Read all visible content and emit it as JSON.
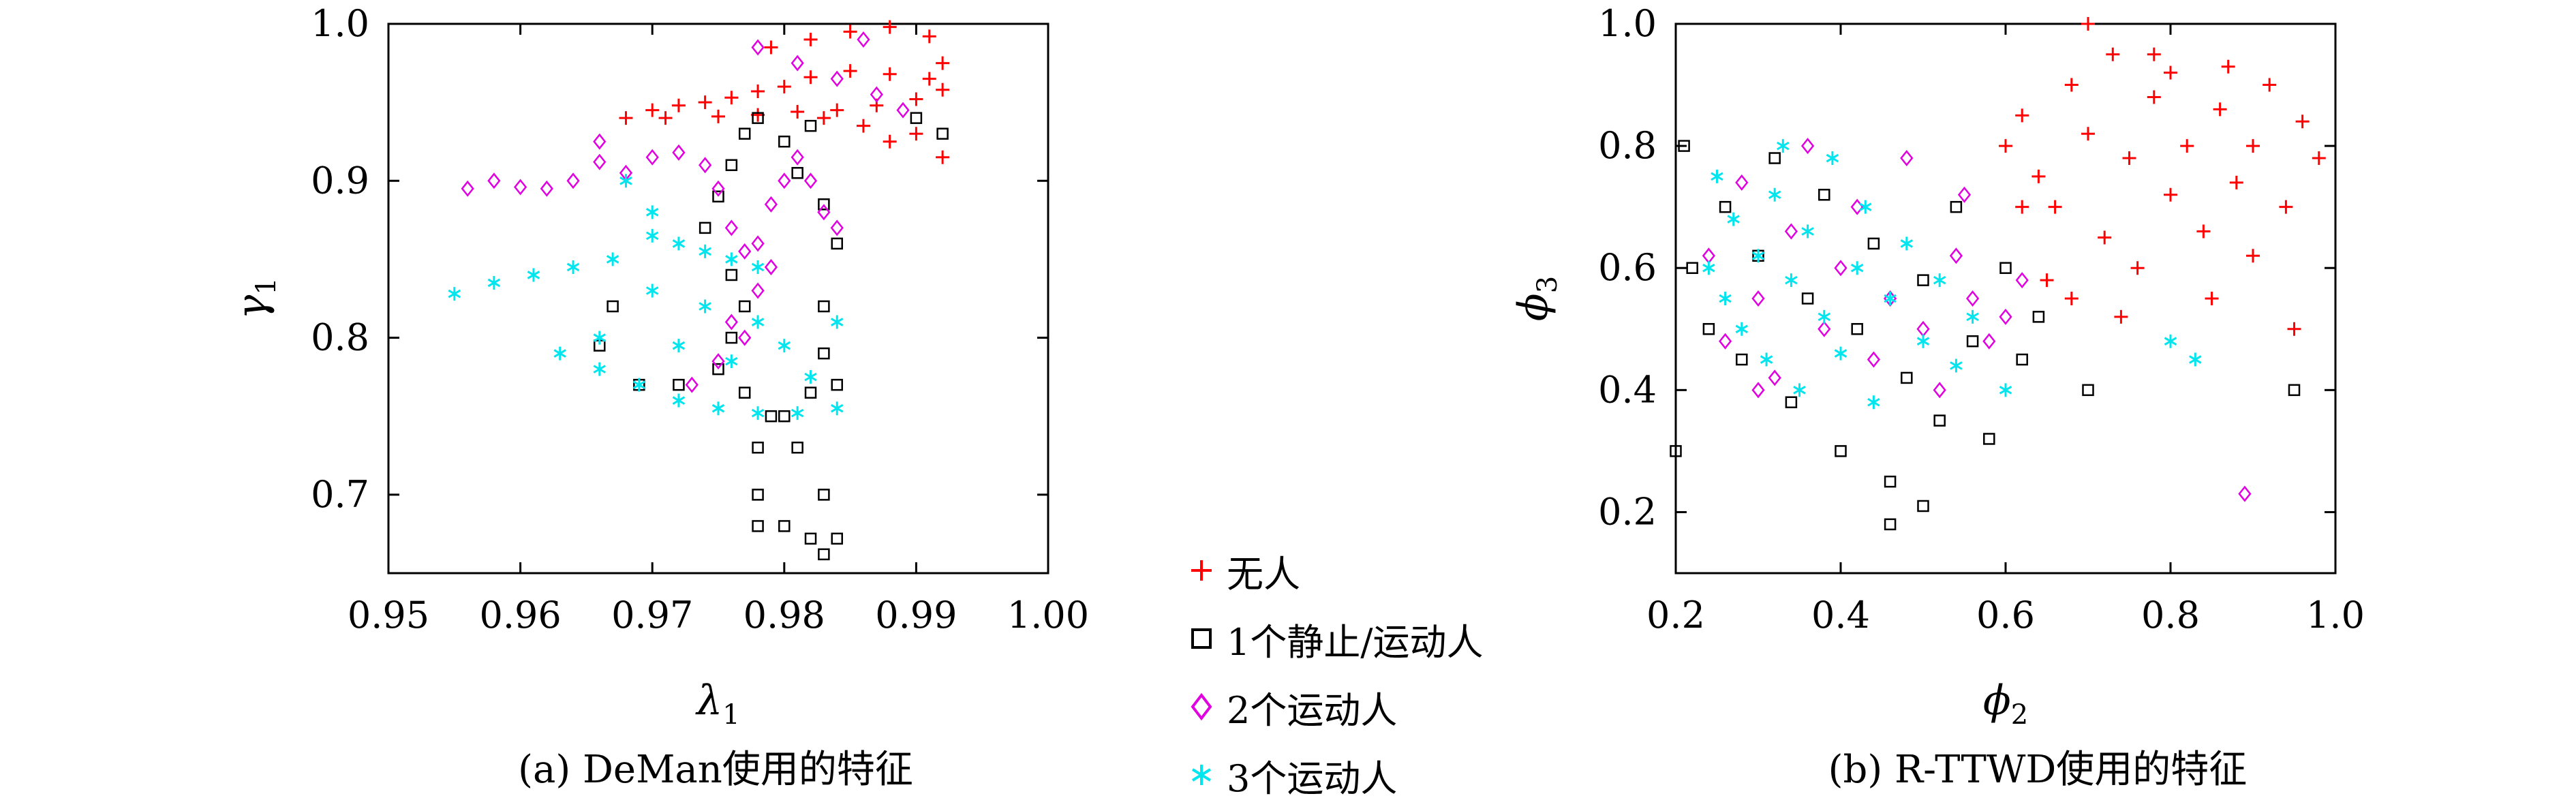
{
  "chart_data": [
    {
      "type": "scatter",
      "caption": "(a) DeMan使用的特征",
      "xlabel": "λ",
      "xlabel_sub": "1",
      "ylabel": "γ",
      "ylabel_sub": "1",
      "xlim": [
        0.95,
        1.0
      ],
      "ylim": [
        0.65,
        1.0
      ],
      "xticks": [
        "0.95",
        "0.96",
        "0.97",
        "0.98",
        "0.99",
        "1.00"
      ],
      "yticks": [
        "0.7",
        "0.8",
        "0.9",
        "1.0"
      ],
      "series": [
        {
          "name": "无人",
          "marker": "plus",
          "color": "#ff0000",
          "points": [
            [
              0.968,
              0.94
            ],
            [
              0.97,
              0.945
            ],
            [
              0.972,
              0.948
            ],
            [
              0.974,
              0.95
            ],
            [
              0.976,
              0.953
            ],
            [
              0.978,
              0.957
            ],
            [
              0.98,
              0.96
            ],
            [
              0.982,
              0.966
            ],
            [
              0.985,
              0.97
            ],
            [
              0.988,
              0.968
            ],
            [
              0.991,
              0.965
            ],
            [
              0.992,
              0.958
            ],
            [
              0.99,
              0.952
            ],
            [
              0.987,
              0.948
            ],
            [
              0.984,
              0.945
            ],
            [
              0.981,
              0.944
            ],
            [
              0.978,
              0.942
            ],
            [
              0.975,
              0.941
            ],
            [
              0.971,
              0.94
            ],
            [
              0.979,
              0.985
            ],
            [
              0.982,
              0.99
            ],
            [
              0.985,
              0.995
            ],
            [
              0.988,
              0.998
            ],
            [
              0.991,
              0.992
            ],
            [
              0.992,
              0.975
            ],
            [
              0.99,
              0.93
            ],
            [
              0.992,
              0.915
            ],
            [
              0.988,
              0.925
            ],
            [
              0.986,
              0.935
            ],
            [
              0.983,
              0.94
            ]
          ]
        },
        {
          "name": "1个静止/运动人",
          "marker": "square",
          "color": "#000000",
          "points": [
            [
              0.978,
              0.94
            ],
            [
              0.977,
              0.93
            ],
            [
              0.976,
              0.91
            ],
            [
              0.975,
              0.89
            ],
            [
              0.974,
              0.87
            ],
            [
              0.976,
              0.84
            ],
            [
              0.977,
              0.82
            ],
            [
              0.976,
              0.8
            ],
            [
              0.975,
              0.78
            ],
            [
              0.977,
              0.765
            ],
            [
              0.979,
              0.75
            ],
            [
              0.978,
              0.73
            ],
            [
              0.978,
              0.7
            ],
            [
              0.978,
              0.68
            ],
            [
              0.98,
              0.68
            ],
            [
              0.982,
              0.672
            ],
            [
              0.983,
              0.662
            ],
            [
              0.984,
              0.672
            ],
            [
              0.983,
              0.7
            ],
            [
              0.981,
              0.73
            ],
            [
              0.98,
              0.75
            ],
            [
              0.982,
              0.765
            ],
            [
              0.984,
              0.77
            ],
            [
              0.983,
              0.79
            ],
            [
              0.983,
              0.82
            ],
            [
              0.984,
              0.86
            ],
            [
              0.983,
              0.885
            ],
            [
              0.981,
              0.905
            ],
            [
              0.98,
              0.925
            ],
            [
              0.967,
              0.82
            ],
            [
              0.966,
              0.795
            ],
            [
              0.969,
              0.77
            ],
            [
              0.972,
              0.77
            ],
            [
              0.99,
              0.94
            ],
            [
              0.992,
              0.93
            ],
            [
              0.982,
              0.935
            ]
          ]
        },
        {
          "name": "2个运动人",
          "marker": "diamond",
          "color": "#e000e0",
          "points": [
            [
              0.956,
              0.895
            ],
            [
              0.958,
              0.9
            ],
            [
              0.96,
              0.896
            ],
            [
              0.962,
              0.895
            ],
            [
              0.964,
              0.9
            ],
            [
              0.966,
              0.912
            ],
            [
              0.966,
              0.925
            ],
            [
              0.968,
              0.905
            ],
            [
              0.97,
              0.915
            ],
            [
              0.972,
              0.918
            ],
            [
              0.974,
              0.91
            ],
            [
              0.975,
              0.895
            ],
            [
              0.976,
              0.87
            ],
            [
              0.977,
              0.855
            ],
            [
              0.978,
              0.86
            ],
            [
              0.979,
              0.885
            ],
            [
              0.98,
              0.9
            ],
            [
              0.981,
              0.915
            ],
            [
              0.982,
              0.9
            ],
            [
              0.983,
              0.88
            ],
            [
              0.984,
              0.87
            ],
            [
              0.978,
              0.83
            ],
            [
              0.977,
              0.8
            ],
            [
              0.975,
              0.785
            ],
            [
              0.973,
              0.77
            ],
            [
              0.976,
              0.81
            ],
            [
              0.979,
              0.845
            ],
            [
              0.978,
              0.985
            ],
            [
              0.981,
              0.975
            ],
            [
              0.984,
              0.965
            ],
            [
              0.987,
              0.955
            ],
            [
              0.989,
              0.945
            ],
            [
              0.986,
              0.99
            ]
          ]
        },
        {
          "name": "3个运动人",
          "marker": "asterisk",
          "color": "#00e5ee",
          "points": [
            [
              0.955,
              0.828
            ],
            [
              0.958,
              0.835
            ],
            [
              0.961,
              0.84
            ],
            [
              0.964,
              0.845
            ],
            [
              0.967,
              0.85
            ],
            [
              0.97,
              0.865
            ],
            [
              0.972,
              0.86
            ],
            [
              0.974,
              0.855
            ],
            [
              0.976,
              0.85
            ],
            [
              0.978,
              0.845
            ],
            [
              0.968,
              0.9
            ],
            [
              0.97,
              0.88
            ],
            [
              0.966,
              0.78
            ],
            [
              0.969,
              0.77
            ],
            [
              0.972,
              0.76
            ],
            [
              0.975,
              0.755
            ],
            [
              0.978,
              0.752
            ],
            [
              0.981,
              0.752
            ],
            [
              0.984,
              0.755
            ],
            [
              0.982,
              0.775
            ],
            [
              0.98,
              0.795
            ],
            [
              0.984,
              0.81
            ],
            [
              0.978,
              0.81
            ],
            [
              0.974,
              0.82
            ],
            [
              0.97,
              0.83
            ],
            [
              0.966,
              0.8
            ],
            [
              0.963,
              0.79
            ],
            [
              0.972,
              0.795
            ],
            [
              0.976,
              0.785
            ]
          ]
        }
      ]
    },
    {
      "type": "scatter",
      "caption": "(b) R-TTWD使用的特征",
      "xlabel": "ϕ",
      "xlabel_sub": "2",
      "ylabel": "ϕ",
      "ylabel_sub": "3",
      "xlim": [
        0.2,
        1.0
      ],
      "ylim": [
        0.1,
        1.0
      ],
      "xticks": [
        "0.2",
        "0.4",
        "0.6",
        "0.8",
        "1.0"
      ],
      "yticks": [
        "0.2",
        "0.4",
        "0.6",
        "0.8",
        "1.0"
      ],
      "series": [
        {
          "name": "无人",
          "marker": "plus",
          "color": "#ff0000",
          "points": [
            [
              0.6,
              0.8
            ],
            [
              0.62,
              0.85
            ],
            [
              0.64,
              0.75
            ],
            [
              0.66,
              0.7
            ],
            [
              0.68,
              0.9
            ],
            [
              0.7,
              0.82
            ],
            [
              0.72,
              0.65
            ],
            [
              0.73,
              0.95
            ],
            [
              0.75,
              0.78
            ],
            [
              0.76,
              0.6
            ],
            [
              0.78,
              0.88
            ],
            [
              0.8,
              0.72
            ],
            [
              0.82,
              0.8
            ],
            [
              0.84,
              0.66
            ],
            [
              0.86,
              0.86
            ],
            [
              0.88,
              0.74
            ],
            [
              0.9,
              0.8
            ],
            [
              0.92,
              0.9
            ],
            [
              0.94,
              0.7
            ],
            [
              0.96,
              0.84
            ],
            [
              0.98,
              0.78
            ],
            [
              0.7,
              1.0
            ],
            [
              0.65,
              0.58
            ],
            [
              0.68,
              0.55
            ],
            [
              0.74,
              0.52
            ],
            [
              0.85,
              0.55
            ],
            [
              0.95,
              0.5
            ],
            [
              0.9,
              0.62
            ],
            [
              0.78,
              0.95
            ],
            [
              0.62,
              0.7
            ],
            [
              0.8,
              0.92
            ],
            [
              0.87,
              0.93
            ]
          ]
        },
        {
          "name": "1个静止/运动人",
          "marker": "square",
          "color": "#000000",
          "points": [
            [
              0.21,
              0.8
            ],
            [
              0.22,
              0.6
            ],
            [
              0.24,
              0.5
            ],
            [
              0.26,
              0.7
            ],
            [
              0.28,
              0.45
            ],
            [
              0.3,
              0.62
            ],
            [
              0.32,
              0.78
            ],
            [
              0.34,
              0.38
            ],
            [
              0.36,
              0.55
            ],
            [
              0.38,
              0.72
            ],
            [
              0.4,
              0.3
            ],
            [
              0.42,
              0.5
            ],
            [
              0.44,
              0.64
            ],
            [
              0.46,
              0.25
            ],
            [
              0.48,
              0.42
            ],
            [
              0.5,
              0.58
            ],
            [
              0.52,
              0.35
            ],
            [
              0.54,
              0.7
            ],
            [
              0.56,
              0.48
            ],
            [
              0.58,
              0.32
            ],
            [
              0.6,
              0.6
            ],
            [
              0.62,
              0.45
            ],
            [
              0.64,
              0.52
            ],
            [
              0.2,
              0.3
            ],
            [
              0.46,
              0.18
            ],
            [
              0.5,
              0.21
            ],
            [
              0.95,
              0.4
            ],
            [
              0.7,
              0.4
            ]
          ]
        },
        {
          "name": "2个运动人",
          "marker": "diamond",
          "color": "#e000e0",
          "points": [
            [
              0.24,
              0.62
            ],
            [
              0.26,
              0.48
            ],
            [
              0.28,
              0.74
            ],
            [
              0.3,
              0.55
            ],
            [
              0.32,
              0.42
            ],
            [
              0.34,
              0.66
            ],
            [
              0.36,
              0.8
            ],
            [
              0.38,
              0.5
            ],
            [
              0.4,
              0.6
            ],
            [
              0.42,
              0.7
            ],
            [
              0.44,
              0.45
            ],
            [
              0.46,
              0.55
            ],
            [
              0.48,
              0.78
            ],
            [
              0.5,
              0.5
            ],
            [
              0.52,
              0.4
            ],
            [
              0.54,
              0.62
            ],
            [
              0.56,
              0.55
            ],
            [
              0.58,
              0.48
            ],
            [
              0.6,
              0.52
            ],
            [
              0.62,
              0.58
            ],
            [
              0.89,
              0.23
            ],
            [
              0.3,
              0.4
            ],
            [
              0.55,
              0.72
            ]
          ]
        },
        {
          "name": "3个运动人",
          "marker": "asterisk",
          "color": "#00e5ee",
          "points": [
            [
              0.24,
              0.6
            ],
            [
              0.26,
              0.55
            ],
            [
              0.27,
              0.68
            ],
            [
              0.28,
              0.5
            ],
            [
              0.3,
              0.62
            ],
            [
              0.31,
              0.45
            ],
            [
              0.32,
              0.72
            ],
            [
              0.34,
              0.58
            ],
            [
              0.35,
              0.4
            ],
            [
              0.36,
              0.66
            ],
            [
              0.38,
              0.52
            ],
            [
              0.39,
              0.78
            ],
            [
              0.4,
              0.46
            ],
            [
              0.42,
              0.6
            ],
            [
              0.43,
              0.7
            ],
            [
              0.44,
              0.38
            ],
            [
              0.46,
              0.55
            ],
            [
              0.48,
              0.64
            ],
            [
              0.5,
              0.48
            ],
            [
              0.52,
              0.58
            ],
            [
              0.54,
              0.44
            ],
            [
              0.56,
              0.52
            ],
            [
              0.33,
              0.8
            ],
            [
              0.25,
              0.75
            ],
            [
              0.8,
              0.48
            ],
            [
              0.83,
              0.45
            ],
            [
              0.6,
              0.4
            ]
          ]
        }
      ]
    }
  ],
  "legend": {
    "items": [
      {
        "label": "无人",
        "marker": "plus",
        "color": "#ff0000"
      },
      {
        "label": "1个静止/运动人",
        "marker": "square",
        "color": "#000000"
      },
      {
        "label": "2个运动人",
        "marker": "diamond",
        "color": "#e000e0"
      },
      {
        "label": "3个运动人",
        "marker": "asterisk",
        "color": "#00e5ee"
      }
    ]
  }
}
